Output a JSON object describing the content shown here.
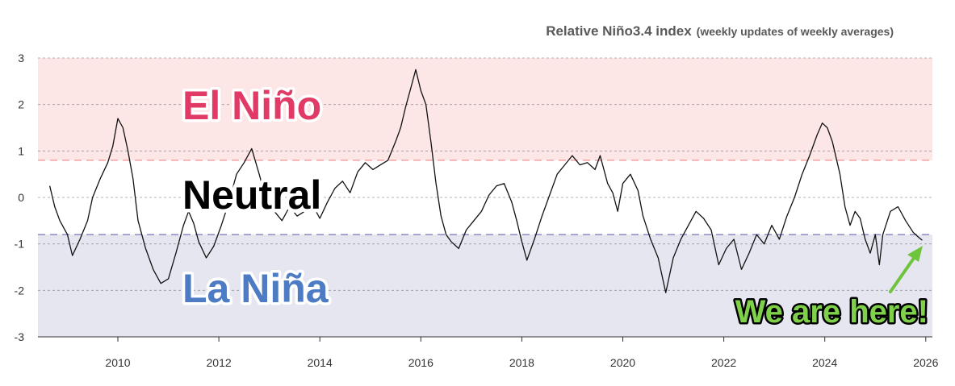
{
  "chart_data": {
    "type": "line",
    "title": "Relative Niño3.4 index",
    "subtitle": "(weekly updates of weekly averages)",
    "xlabel": "",
    "ylabel": "",
    "xlim": [
      2008.6,
      2026.1
    ],
    "ylim": [
      -3,
      3
    ],
    "grid": true,
    "y_ticks": [
      "3",
      "2",
      "1",
      "0",
      "-1",
      "-2",
      "-3"
    ],
    "y_tick_values": [
      3,
      2,
      1,
      0,
      -1,
      -2,
      -3
    ],
    "x_ticks": [
      "2010",
      "2012",
      "2014",
      "2016",
      "2018",
      "2020",
      "2022",
      "2024",
      "2026"
    ],
    "x_tick_values": [
      2010,
      2012,
      2014,
      2016,
      2018,
      2020,
      2022,
      2024,
      2026
    ],
    "thresholds": {
      "el_nino": 0.8,
      "la_nina": -0.8
    },
    "regions": {
      "el_nino": {
        "label": "El Niño",
        "color": "#e23a66",
        "band_color": "#fce6e6"
      },
      "neutral": {
        "label": "Neutral",
        "color": "#000000"
      },
      "la_nina": {
        "label": "La Niña",
        "color": "#4d7bc4",
        "band_color": "#e6e6f0"
      }
    },
    "annotation": {
      "text": "We are here!",
      "color": "#7fd14a",
      "x": 2025.9,
      "y": -0.92
    },
    "series": [
      {
        "name": "Relative Niño3.4 index",
        "color": "#111111",
        "points": [
          [
            2008.65,
            0.25
          ],
          [
            2008.75,
            -0.2
          ],
          [
            2008.85,
            -0.5
          ],
          [
            2009.0,
            -0.8
          ],
          [
            2009.1,
            -1.25
          ],
          [
            2009.25,
            -0.9
          ],
          [
            2009.4,
            -0.5
          ],
          [
            2009.5,
            0.0
          ],
          [
            2009.65,
            0.4
          ],
          [
            2009.8,
            0.75
          ],
          [
            2009.9,
            1.1
          ],
          [
            2010.0,
            1.7
          ],
          [
            2010.1,
            1.5
          ],
          [
            2010.2,
            1.0
          ],
          [
            2010.3,
            0.4
          ],
          [
            2010.4,
            -0.5
          ],
          [
            2010.55,
            -1.1
          ],
          [
            2010.7,
            -1.55
          ],
          [
            2010.85,
            -1.85
          ],
          [
            2011.0,
            -1.75
          ],
          [
            2011.15,
            -1.2
          ],
          [
            2011.3,
            -0.6
          ],
          [
            2011.4,
            -0.3
          ],
          [
            2011.5,
            -0.55
          ],
          [
            2011.6,
            -0.95
          ],
          [
            2011.75,
            -1.3
          ],
          [
            2011.9,
            -1.05
          ],
          [
            2012.05,
            -0.6
          ],
          [
            2012.2,
            -0.1
          ],
          [
            2012.35,
            0.5
          ],
          [
            2012.5,
            0.75
          ],
          [
            2012.65,
            1.05
          ],
          [
            2012.8,
            0.5
          ],
          [
            2012.95,
            -0.1
          ],
          [
            2013.1,
            -0.3
          ],
          [
            2013.25,
            -0.5
          ],
          [
            2013.4,
            -0.2
          ],
          [
            2013.55,
            -0.4
          ],
          [
            2013.7,
            -0.3
          ],
          [
            2013.85,
            -0.15
          ],
          [
            2014.0,
            -0.45
          ],
          [
            2014.15,
            -0.1
          ],
          [
            2014.3,
            0.2
          ],
          [
            2014.45,
            0.35
          ],
          [
            2014.6,
            0.1
          ],
          [
            2014.75,
            0.55
          ],
          [
            2014.9,
            0.75
          ],
          [
            2015.05,
            0.6
          ],
          [
            2015.2,
            0.7
          ],
          [
            2015.35,
            0.8
          ],
          [
            2015.5,
            1.2
          ],
          [
            2015.6,
            1.5
          ],
          [
            2015.7,
            1.95
          ],
          [
            2015.8,
            2.35
          ],
          [
            2015.9,
            2.75
          ],
          [
            2016.0,
            2.3
          ],
          [
            2016.1,
            2.0
          ],
          [
            2016.2,
            1.2
          ],
          [
            2016.3,
            0.3
          ],
          [
            2016.4,
            -0.4
          ],
          [
            2016.5,
            -0.8
          ],
          [
            2016.6,
            -0.95
          ],
          [
            2016.75,
            -1.1
          ],
          [
            2016.9,
            -0.7
          ],
          [
            2017.05,
            -0.5
          ],
          [
            2017.2,
            -0.3
          ],
          [
            2017.35,
            0.05
          ],
          [
            2017.5,
            0.25
          ],
          [
            2017.65,
            0.3
          ],
          [
            2017.8,
            -0.1
          ],
          [
            2017.9,
            -0.5
          ],
          [
            2018.0,
            -0.95
          ],
          [
            2018.1,
            -1.35
          ],
          [
            2018.25,
            -0.9
          ],
          [
            2018.4,
            -0.4
          ],
          [
            2018.55,
            0.05
          ],
          [
            2018.7,
            0.5
          ],
          [
            2018.85,
            0.7
          ],
          [
            2019.0,
            0.9
          ],
          [
            2019.15,
            0.7
          ],
          [
            2019.3,
            0.75
          ],
          [
            2019.45,
            0.6
          ],
          [
            2019.55,
            0.9
          ],
          [
            2019.7,
            0.3
          ],
          [
            2019.8,
            0.1
          ],
          [
            2019.9,
            -0.3
          ],
          [
            2020.0,
            0.3
          ],
          [
            2020.15,
            0.5
          ],
          [
            2020.3,
            0.15
          ],
          [
            2020.4,
            -0.4
          ],
          [
            2020.55,
            -0.9
          ],
          [
            2020.7,
            -1.3
          ],
          [
            2020.85,
            -2.05
          ],
          [
            2021.0,
            -1.3
          ],
          [
            2021.15,
            -0.9
          ],
          [
            2021.3,
            -0.6
          ],
          [
            2021.45,
            -0.3
          ],
          [
            2021.6,
            -0.45
          ],
          [
            2021.75,
            -0.7
          ],
          [
            2021.9,
            -1.45
          ],
          [
            2022.05,
            -1.1
          ],
          [
            2022.2,
            -0.9
          ],
          [
            2022.35,
            -1.55
          ],
          [
            2022.5,
            -1.2
          ],
          [
            2022.65,
            -0.8
          ],
          [
            2022.8,
            -1.0
          ],
          [
            2022.95,
            -0.6
          ],
          [
            2023.1,
            -0.9
          ],
          [
            2023.25,
            -0.4
          ],
          [
            2023.4,
            0.0
          ],
          [
            2023.55,
            0.5
          ],
          [
            2023.7,
            0.9
          ],
          [
            2023.85,
            1.35
          ],
          [
            2023.95,
            1.6
          ],
          [
            2024.05,
            1.5
          ],
          [
            2024.15,
            1.2
          ],
          [
            2024.3,
            0.5
          ],
          [
            2024.4,
            -0.2
          ],
          [
            2024.5,
            -0.6
          ],
          [
            2024.6,
            -0.3
          ],
          [
            2024.7,
            -0.45
          ],
          [
            2024.8,
            -0.9
          ],
          [
            2024.9,
            -1.2
          ],
          [
            2025.0,
            -0.8
          ],
          [
            2025.08,
            -1.45
          ],
          [
            2025.15,
            -0.8
          ],
          [
            2025.3,
            -0.3
          ],
          [
            2025.45,
            -0.2
          ],
          [
            2025.6,
            -0.5
          ],
          [
            2025.75,
            -0.75
          ],
          [
            2025.85,
            -0.85
          ],
          [
            2025.93,
            -0.92
          ]
        ]
      }
    ]
  }
}
